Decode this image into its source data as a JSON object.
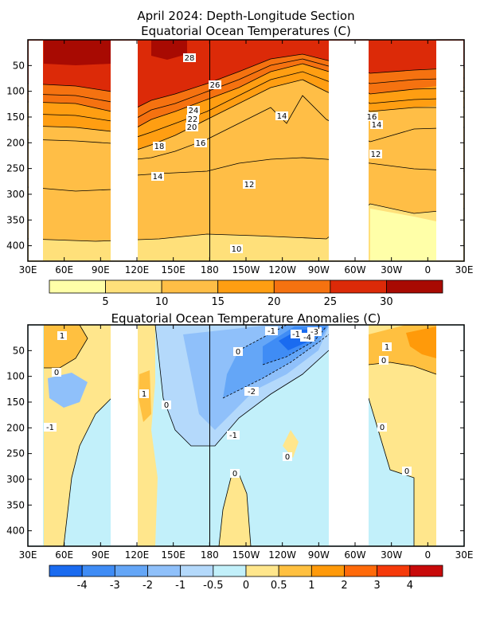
{
  "page": {
    "title_line1": "April 2024: Depth-Longitude Section",
    "title_line2": "Equatorial Ocean Temperatures (C)",
    "title_anom": "Equatorial Ocean Temperature Anomalies (C)"
  },
  "colors": {
    "land_gap": "#ffffff",
    "frame": "#000000"
  },
  "chart_data": [
    {
      "type": "heatmap",
      "title": "Equatorial Ocean Temperatures (C)",
      "x_ticks": [
        "30E",
        "60E",
        "90E",
        "120E",
        "150E",
        "180",
        "150W",
        "120W",
        "90W",
        "60W",
        "30W",
        "0",
        "30E"
      ],
      "y_ticks": [
        "50",
        "100",
        "150",
        "200",
        "250",
        "300",
        "350",
        "400"
      ],
      "y_ticks_values": [
        50,
        100,
        150,
        200,
        250,
        300,
        350,
        400
      ],
      "xlim_deg_east": [
        30,
        390
      ],
      "ylim": [
        0,
        430
      ],
      "y_direction": "depth increasing downward",
      "land_gaps_deg_east": [
        [
          96,
          118
        ],
        [
          278,
          310
        ]
      ],
      "colorbar": {
        "colors": [
          "#ffffa8",
          "#ffe07a",
          "#ffbe46",
          "#ff9e12",
          "#f57210",
          "#dc2a08",
          "#a80a02"
        ],
        "labels": [
          "5",
          "10",
          "15",
          "20",
          "25",
          "30"
        ]
      },
      "contour_labels": [
        "28",
        "26",
        "24",
        "22",
        "20",
        "18",
        "16",
        "14",
        "12",
        "10",
        "14",
        "16",
        "14",
        "12"
      ]
    },
    {
      "type": "heatmap",
      "title": "Equatorial Ocean Temperature Anomalies (C)",
      "x_ticks": [
        "30E",
        "60E",
        "90E",
        "120E",
        "150E",
        "180",
        "150W",
        "120W",
        "90W",
        "60W",
        "30W",
        "0",
        "30E"
      ],
      "y_ticks": [
        "50",
        "100",
        "150",
        "200",
        "250",
        "300",
        "350",
        "400"
      ],
      "y_ticks_values": [
        50,
        100,
        150,
        200,
        250,
        300,
        350,
        400
      ],
      "xlim_deg_east": [
        30,
        390
      ],
      "ylim": [
        0,
        430
      ],
      "y_direction": "depth increasing downward",
      "land_gaps_deg_east": [
        [
          96,
          118
        ],
        [
          278,
          310
        ]
      ],
      "colorbar": {
        "colors": [
          "#1a6bf0",
          "#3f8cf5",
          "#64a6f7",
          "#8fc0fa",
          "#b4d9fb",
          "#c2f0fa",
          "#ffe68c",
          "#ffc040",
          "#ff9a0a",
          "#ff6a0a",
          "#f53a0a",
          "#c80a0a"
        ],
        "labels": [
          "-4",
          "-3",
          "-2",
          "-1",
          "-0.5",
          "0",
          "0.5",
          "1",
          "2",
          "3",
          "4"
        ]
      },
      "contour_labels": [
        "1",
        "0",
        "1",
        "0",
        "-1",
        "0",
        "-1",
        "-2",
        "-1",
        "0",
        "-3",
        "-4",
        "-1",
        "1",
        "0",
        "0",
        "0",
        "0"
      ]
    }
  ]
}
